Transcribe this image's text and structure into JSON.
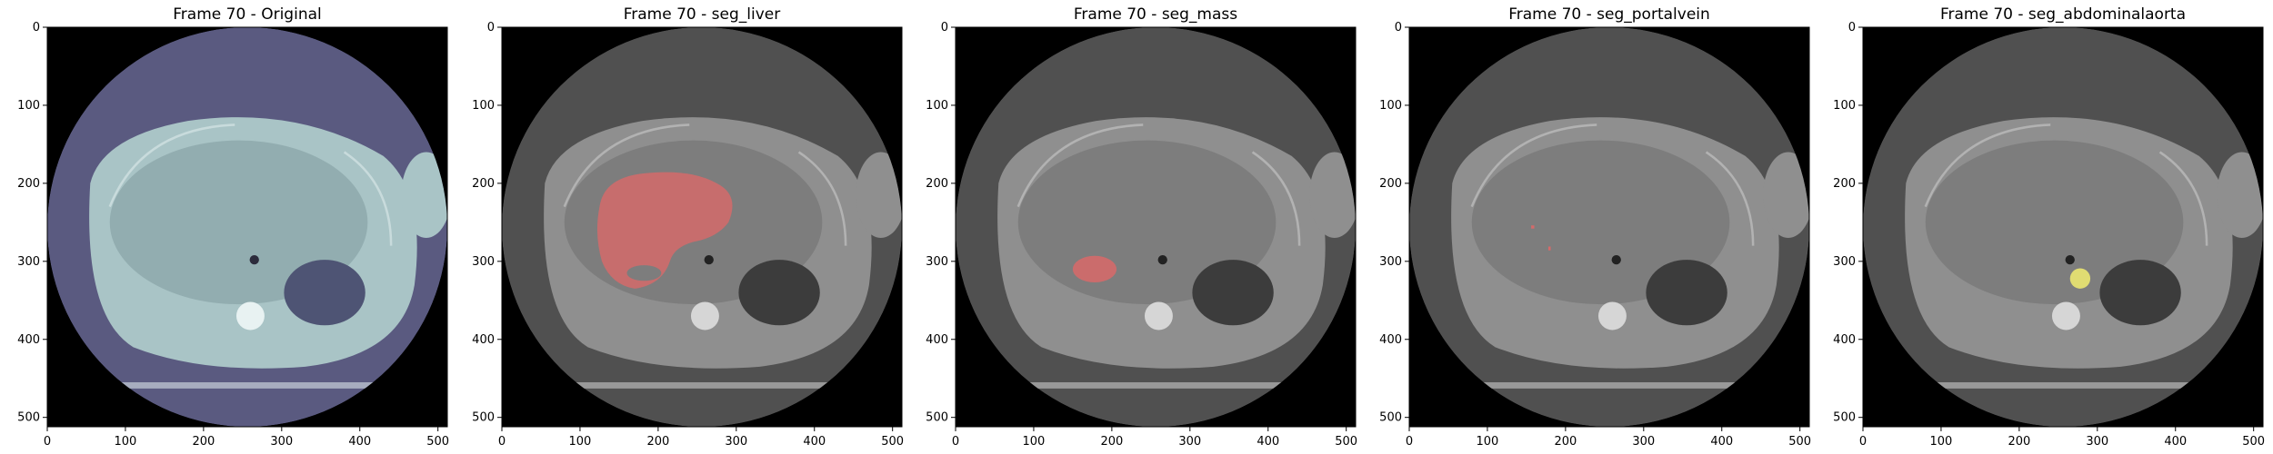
{
  "figure": {
    "frame_label": "Frame 70",
    "panels": [
      {
        "title": "Frame 70 - Original",
        "overlay": "none"
      },
      {
        "title": "Frame 70 - seg_liver",
        "overlay": "liver"
      },
      {
        "title": "Frame 70 - seg_mass",
        "overlay": "mass"
      },
      {
        "title": "Frame 70 - seg_portalvein",
        "overlay": "portalvein"
      },
      {
        "title": "Frame 70 - seg_abdominalaorta",
        "overlay": "aorta"
      }
    ],
    "axis_ticks": [
      "0",
      "100",
      "200",
      "300",
      "400",
      "500"
    ],
    "tick_values": [
      0,
      100,
      200,
      300,
      400,
      500
    ],
    "image_extent": 512
  },
  "colors": {
    "original_tint": "#a9c4c6",
    "original_bg": "#5a5a80",
    "gray_bg": "#505050",
    "seg_red": "#d46a6a",
    "seg_yellow": "#e6e272"
  }
}
